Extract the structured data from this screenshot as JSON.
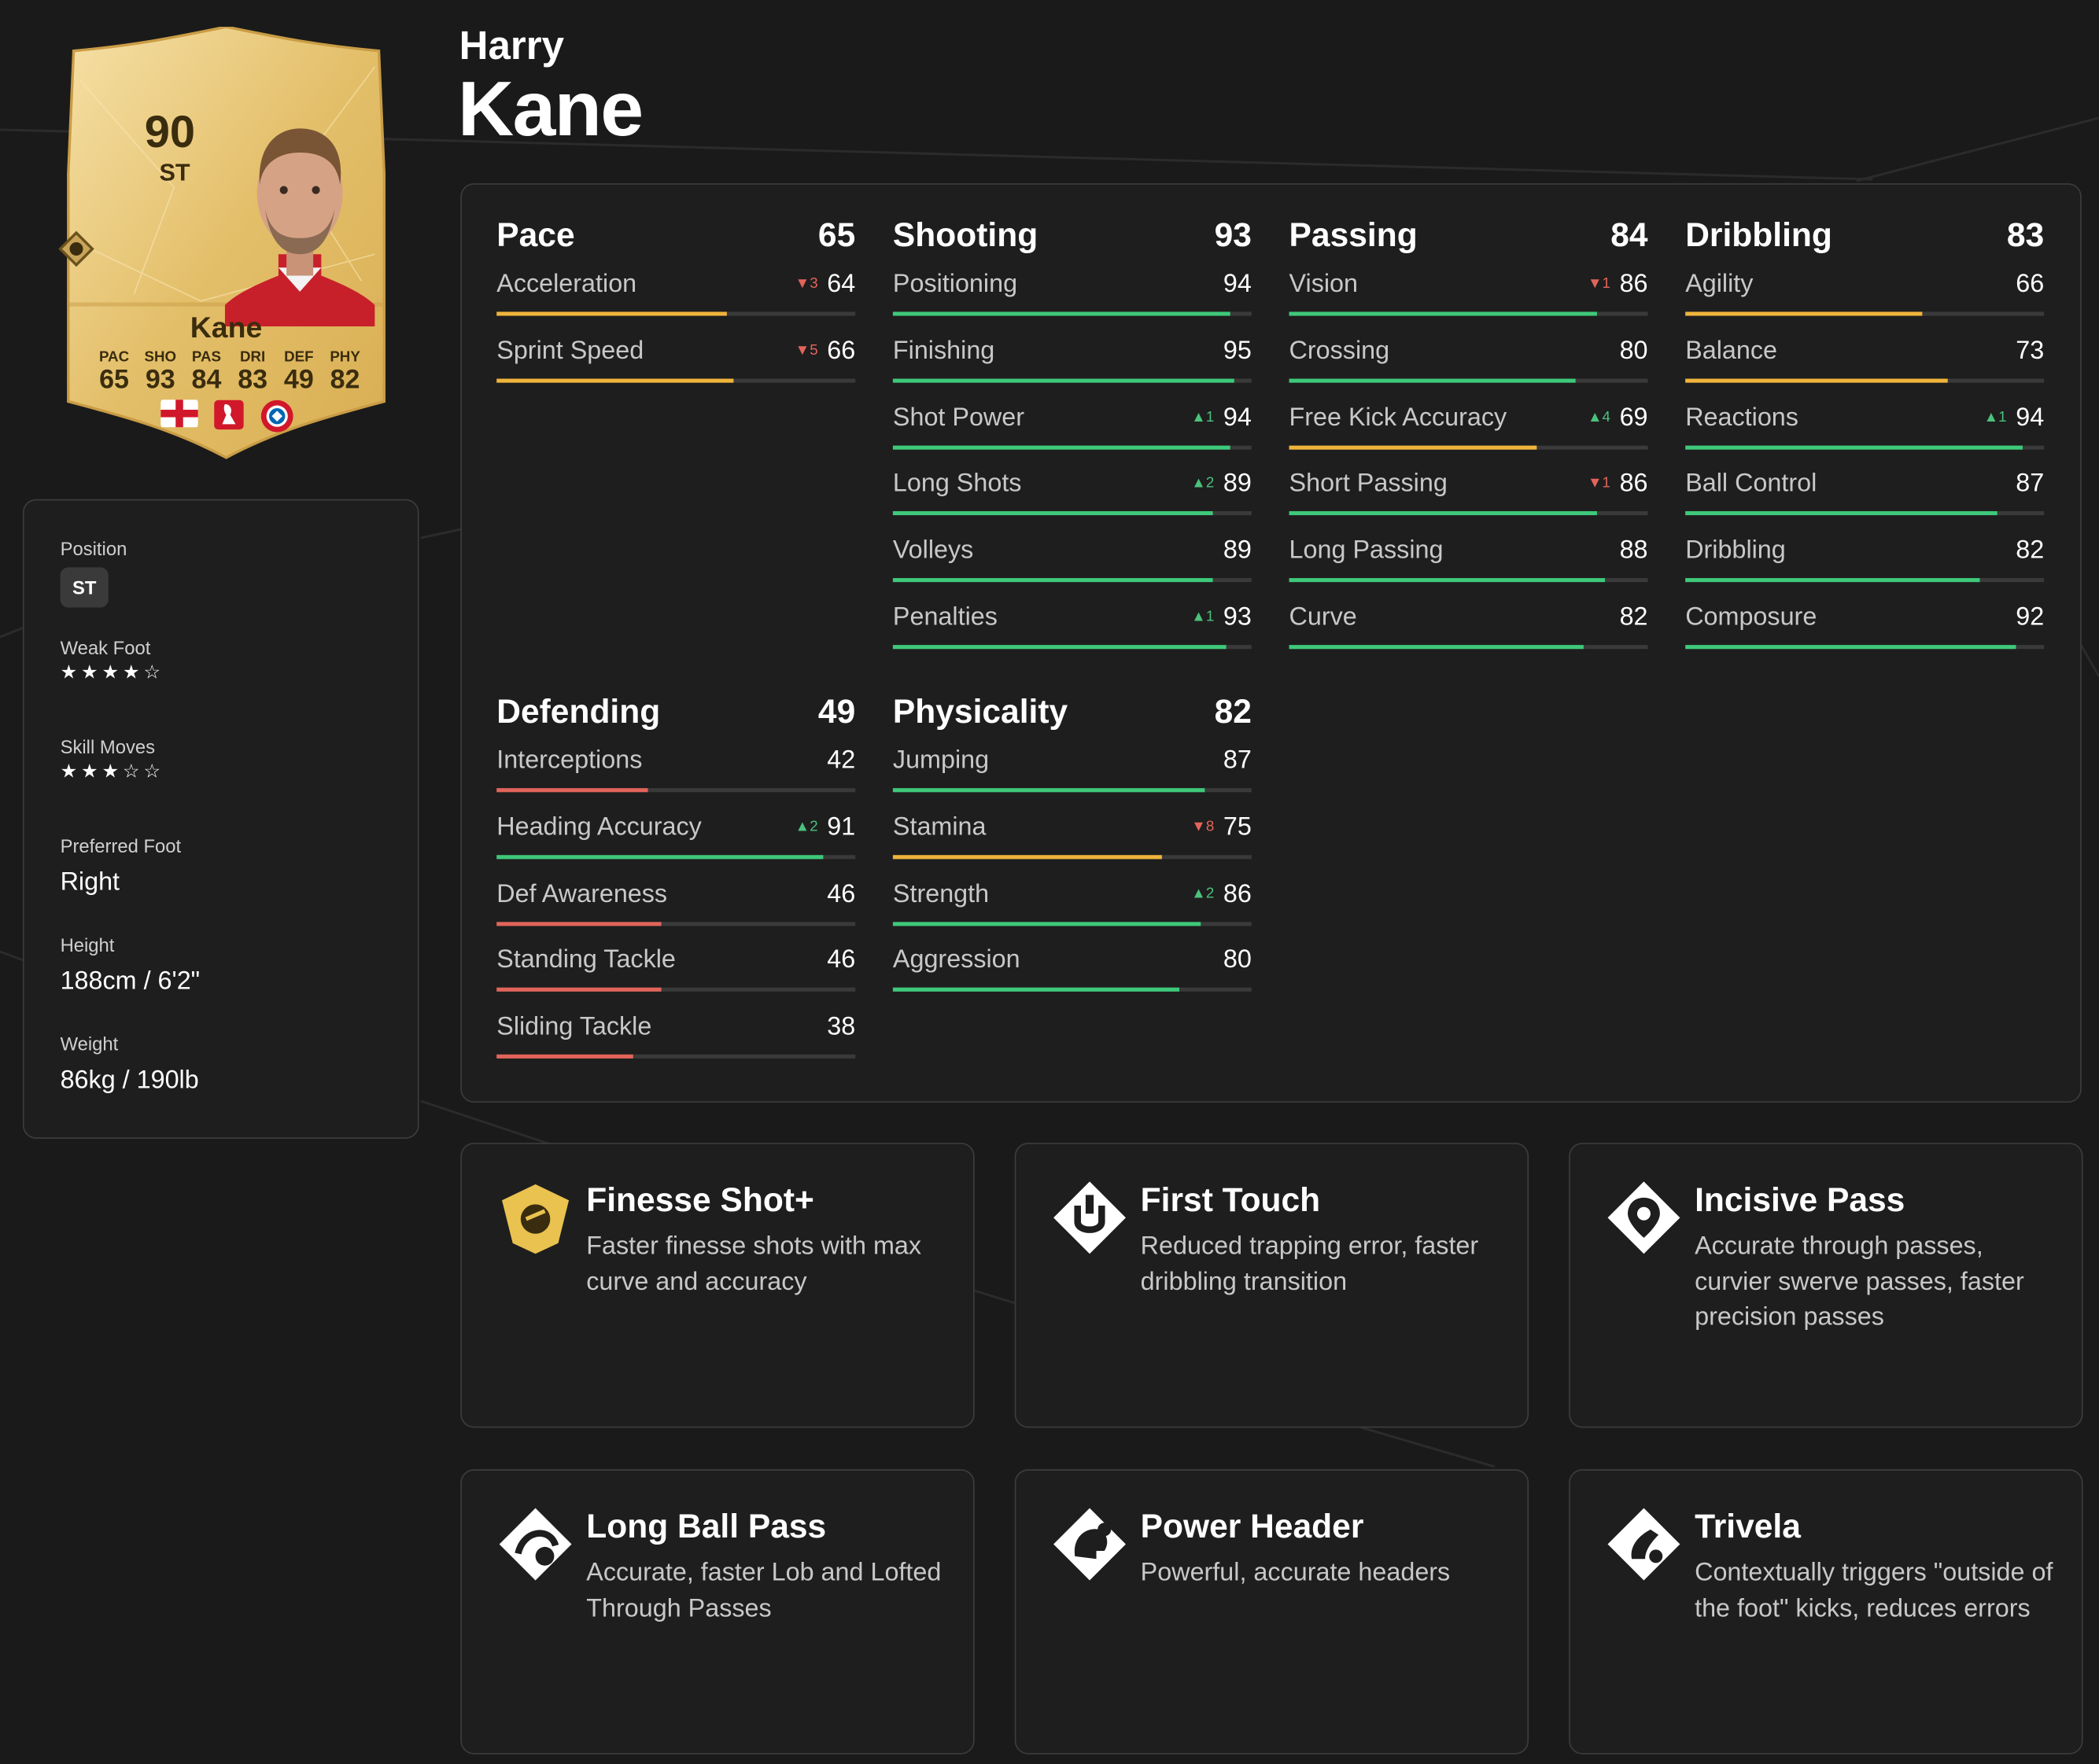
{
  "colors": {
    "high": "#3ec97a",
    "mid": "#f0b43c",
    "low": "#e2645a",
    "card_gold": "#e9c877",
    "background": "#1a1a1a"
  },
  "card": {
    "rating": "90",
    "position": "ST",
    "name": "Kane",
    "attributes": [
      {
        "label": "PAC",
        "value": "65"
      },
      {
        "label": "SHO",
        "value": "93"
      },
      {
        "label": "PAS",
        "value": "84"
      },
      {
        "label": "DRI",
        "value": "83"
      },
      {
        "label": "DEF",
        "value": "49"
      },
      {
        "label": "PHY",
        "value": "82"
      }
    ],
    "icons": [
      "england-flag",
      "bundesliga-logo",
      "fc-bayern-badge"
    ]
  },
  "player": {
    "first_name": "Harry",
    "last_name": "Kane"
  },
  "info": {
    "position_label": "Position",
    "position_value": "ST",
    "weak_foot_label": "Weak Foot",
    "weak_foot_stars": 4,
    "skill_moves_label": "Skill Moves",
    "skill_moves_stars": 3,
    "preferred_foot_label": "Preferred Foot",
    "preferred_foot_value": "Right",
    "height_label": "Height",
    "height_value": "188cm / 6'2\"",
    "weight_label": "Weight",
    "weight_value": "86kg / 190lb"
  },
  "stats": [
    {
      "name": "Pace",
      "value": "65",
      "items": [
        {
          "name": "Acceleration",
          "value": "64",
          "delta": "3",
          "dir": "down"
        },
        {
          "name": "Sprint Speed",
          "value": "66",
          "delta": "5",
          "dir": "down"
        }
      ]
    },
    {
      "name": "Shooting",
      "value": "93",
      "items": [
        {
          "name": "Positioning",
          "value": "94"
        },
        {
          "name": "Finishing",
          "value": "95"
        },
        {
          "name": "Shot Power",
          "value": "94",
          "delta": "1",
          "dir": "up"
        },
        {
          "name": "Long Shots",
          "value": "89",
          "delta": "2",
          "dir": "up"
        },
        {
          "name": "Volleys",
          "value": "89"
        },
        {
          "name": "Penalties",
          "value": "93",
          "delta": "1",
          "dir": "up"
        }
      ]
    },
    {
      "name": "Passing",
      "value": "84",
      "items": [
        {
          "name": "Vision",
          "value": "86",
          "delta": "1",
          "dir": "down"
        },
        {
          "name": "Crossing",
          "value": "80"
        },
        {
          "name": "Free Kick Accuracy",
          "value": "69",
          "delta": "4",
          "dir": "up"
        },
        {
          "name": "Short Passing",
          "value": "86",
          "delta": "1",
          "dir": "down"
        },
        {
          "name": "Long Passing",
          "value": "88"
        },
        {
          "name": "Curve",
          "value": "82"
        }
      ]
    },
    {
      "name": "Dribbling",
      "value": "83",
      "items": [
        {
          "name": "Agility",
          "value": "66"
        },
        {
          "name": "Balance",
          "value": "73"
        },
        {
          "name": "Reactions",
          "value": "94",
          "delta": "1",
          "dir": "up"
        },
        {
          "name": "Ball Control",
          "value": "87"
        },
        {
          "name": "Dribbling",
          "value": "82"
        },
        {
          "name": "Composure",
          "value": "92"
        }
      ]
    },
    {
      "name": "Defending",
      "value": "49",
      "items": [
        {
          "name": "Interceptions",
          "value": "42"
        },
        {
          "name": "Heading Accuracy",
          "value": "91",
          "delta": "2",
          "dir": "up"
        },
        {
          "name": "Def Awareness",
          "value": "46"
        },
        {
          "name": "Standing Tackle",
          "value": "46"
        },
        {
          "name": "Sliding Tackle",
          "value": "38"
        }
      ]
    },
    {
      "name": "Physicality",
      "value": "82",
      "items": [
        {
          "name": "Jumping",
          "value": "87"
        },
        {
          "name": "Stamina",
          "value": "75",
          "delta": "8",
          "dir": "down"
        },
        {
          "name": "Strength",
          "value": "86",
          "delta": "2",
          "dir": "up"
        },
        {
          "name": "Aggression",
          "value": "80"
        }
      ]
    }
  ],
  "playstyles": [
    {
      "title": "Finesse Shot+",
      "desc": "Faster finesse shots with max curve and accuracy",
      "icon": "finesse-shot-plus-icon",
      "gold": true
    },
    {
      "title": "First Touch",
      "desc": "Reduced trapping error, faster dribbling transition",
      "icon": "first-touch-icon"
    },
    {
      "title": "Incisive Pass",
      "desc": "Accurate through passes, curvier swerve passes, faster precision passes",
      "icon": "incisive-pass-icon"
    },
    {
      "title": "Long Ball Pass",
      "desc": "Accurate, faster Lob and Lofted Through Passes",
      "icon": "long-ball-pass-icon"
    },
    {
      "title": "Power Header",
      "desc": "Powerful, accurate headers",
      "icon": "power-header-icon"
    },
    {
      "title": "Trivela",
      "desc": "Contextually triggers \"outside of the foot\" kicks, reduces errors",
      "icon": "trivela-icon"
    }
  ]
}
